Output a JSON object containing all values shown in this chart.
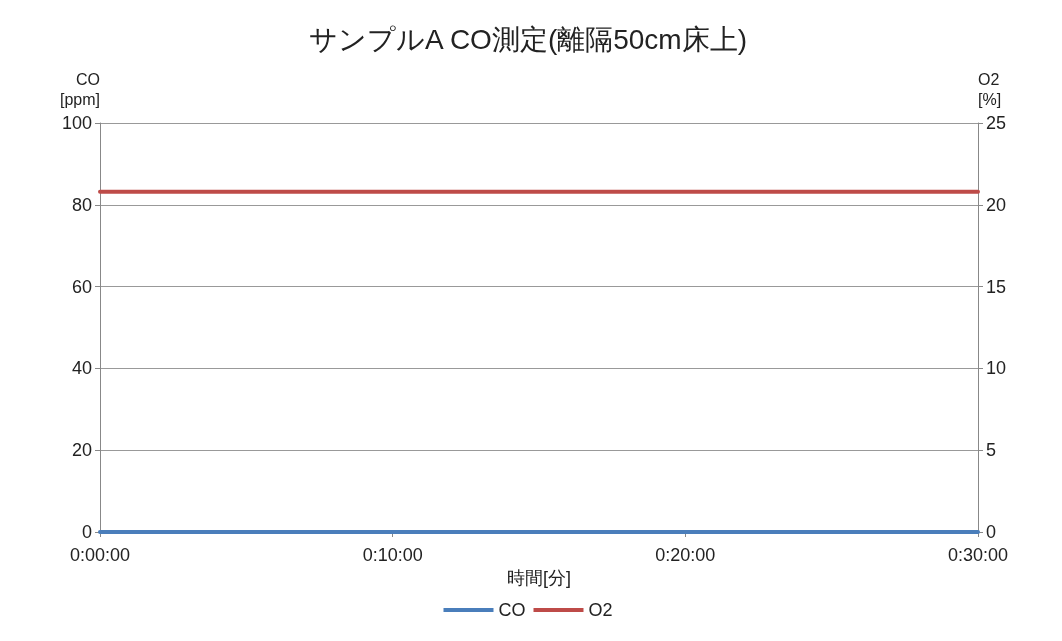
{
  "chart_data": {
    "type": "line",
    "title": "サンプルA CO測定(離隔50cm床上)",
    "xlabel": "時間[分]",
    "ylabel": "CO\n[ppm]",
    "y2label": "O2\n[%]",
    "x": [
      0,
      0.5
    ],
    "series": [
      {
        "name": "CO",
        "color": "#4a7ebb",
        "values": [
          0,
          0
        ]
      },
      {
        "name": "O2",
        "color": "#be4b48",
        "axis": "y2",
        "values": [
          20.8,
          20.8
        ]
      }
    ],
    "xlim": [
      0,
      0.5
    ],
    "xticks": [
      {
        "value": 0,
        "label": "0:00:00"
      },
      {
        "value": 0.16667,
        "label": "0:10:00"
      },
      {
        "value": 0.33333,
        "label": "0:20:00"
      },
      {
        "value": 0.5,
        "label": "0:30:00"
      }
    ],
    "ylim": [
      0,
      100
    ],
    "yticks": [
      0,
      20,
      40,
      60,
      80,
      100
    ],
    "y2lim": [
      0,
      25
    ],
    "y2ticks": [
      0,
      5,
      10,
      15,
      20,
      25
    ],
    "grid": "y",
    "legend": "bottom",
    "marker": "none",
    "line_style": "solid"
  }
}
